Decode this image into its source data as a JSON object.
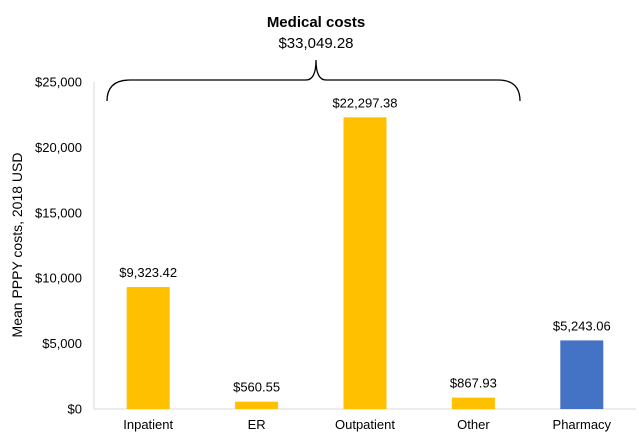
{
  "chart_data": {
    "type": "bar",
    "title": "",
    "xlabel": "",
    "ylabel": "Mean PPPY costs, 2018 USD",
    "ylim": [
      0,
      25000
    ],
    "yticks": [
      0,
      5000,
      10000,
      15000,
      20000,
      25000
    ],
    "ytick_labels": [
      "$0",
      "$5,000",
      "$10,000",
      "$15,000",
      "$20,000",
      "$25,000"
    ],
    "grid": false,
    "categories": [
      "Inpatient",
      "ER",
      "Outpatient",
      "Other",
      "Pharmacy"
    ],
    "values": [
      9323.42,
      560.55,
      22297.38,
      867.93,
      5243.06
    ],
    "data_labels": [
      "$9,323.42",
      "$560.55",
      "$22,297.38",
      "$867.93",
      "$5,243.06"
    ],
    "bar_colors": [
      "#FFC000",
      "#FFC000",
      "#FFC000",
      "#FFC000",
      "#4472C4"
    ],
    "annotations": [
      {
        "type": "bracket",
        "spans_categories": [
          "Inpatient",
          "ER",
          "Outpatient",
          "Other"
        ],
        "title": "Medical costs",
        "value_label": "$33,049.28"
      }
    ]
  }
}
